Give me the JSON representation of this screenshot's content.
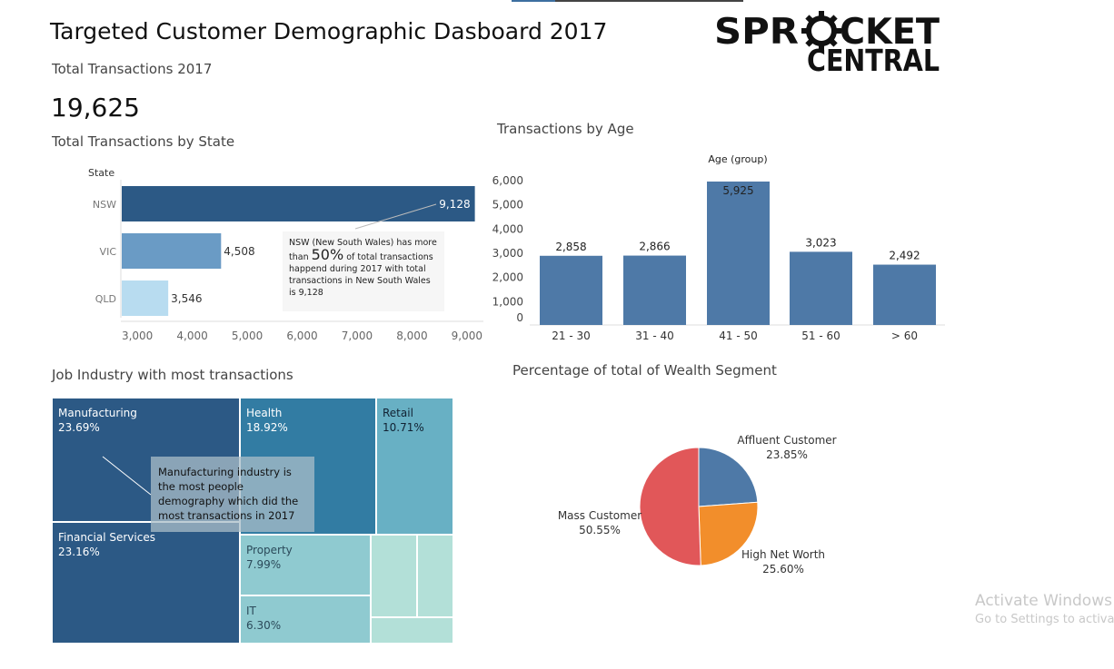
{
  "header": {
    "title": "Targeted Customer Demographic Dasboard 2017",
    "subtitle": "Total Transactions 2017",
    "total": "19,625",
    "logo_line1_left": "SPR",
    "logo_line1_right": "CKET",
    "logo_line2": "CENTRAL"
  },
  "colors": {
    "state_nsw": "#2c5985",
    "state_vic": "#6a9bc5",
    "state_qld": "#b8dcf0",
    "age_bar": "#4e79a7",
    "pie_affluent": "#4e79a7",
    "pie_high_net": "#f28e2b",
    "pie_mass": "#e15759"
  },
  "state_chart": {
    "title": "Total Transactions by State",
    "axis_header": "State",
    "note_pre": "NSW (New South Wales) has more than ",
    "note_big": "50%",
    "note_post": " of total transactions happend during 2017 with total transactions in New South Wales is 9,128"
  },
  "age_chart": {
    "title": "Transactions by Age",
    "axis_header": "Age (group)"
  },
  "industry_chart": {
    "title": "Job Industry with most transactions",
    "note": "Manufacturing industry is the most people demography which did the most transactions in 2017"
  },
  "wealth_chart": {
    "title": "Percentage of total of Wealth Segment"
  },
  "chart_data": [
    {
      "type": "bar",
      "orientation": "horizontal",
      "title": "Total Transactions by State",
      "categories": [
        "NSW",
        "VIC",
        "QLD"
      ],
      "values": [
        9128,
        4508,
        3546
      ],
      "value_labels": [
        "9,128",
        "4,508",
        "3,546"
      ],
      "xlim": [
        2700,
        9300
      ],
      "xticks": [
        3000,
        4000,
        5000,
        6000,
        7000,
        8000,
        9000
      ],
      "xtick_labels": [
        "3,000",
        "4,000",
        "5,000",
        "6,000",
        "7,000",
        "8,000",
        "9,000"
      ],
      "ylabel": "State"
    },
    {
      "type": "bar",
      "title": "Transactions by Age",
      "xlabel": "Age (group)",
      "categories": [
        "21 - 30",
        "31 - 40",
        "41 - 50",
        "51 - 60",
        "> 60"
      ],
      "values": [
        2858,
        2866,
        5925,
        3023,
        2492
      ],
      "value_labels": [
        "2,858",
        "2,866",
        "5,925",
        "3,023",
        "2,492"
      ],
      "yticks": [
        0,
        1000,
        2000,
        3000,
        4000,
        5000,
        6000
      ],
      "ytick_labels": [
        "0",
        "1,000",
        "2,000",
        "3,000",
        "4,000",
        "5,000",
        "6,000"
      ]
    },
    {
      "type": "treemap",
      "title": "Job Industry with most transactions",
      "items": [
        {
          "name": "Manufacturing",
          "pct": "23.69%",
          "value": 23.69,
          "color": "#2c5985"
        },
        {
          "name": "Financial Services",
          "pct": "23.16%",
          "value": 23.16,
          "color": "#2c5985"
        },
        {
          "name": "Health",
          "pct": "18.92%",
          "value": 18.92,
          "color": "#327ca3"
        },
        {
          "name": "Retail",
          "pct": "10.71%",
          "value": 10.71,
          "color": "#68b0c4"
        },
        {
          "name": "Property",
          "pct": "7.99%",
          "value": 7.99,
          "color": "#8fcad0"
        },
        {
          "name": "IT",
          "pct": "6.30%",
          "value": 6.3,
          "color": "#8fcad0"
        }
      ]
    },
    {
      "type": "pie",
      "title": "Percentage of total of Wealth Segment",
      "slices": [
        {
          "name": "Affluent Customer",
          "pct": "23.85%",
          "value": 23.85
        },
        {
          "name": "High Net Worth",
          "pct": "25.60%",
          "value": 25.6
        },
        {
          "name": "Mass Customer",
          "pct": "50.55%",
          "value": 50.55
        }
      ]
    }
  ],
  "watermark": {
    "line1": "Activate Windows",
    "line2": "Go to Settings to activa"
  }
}
